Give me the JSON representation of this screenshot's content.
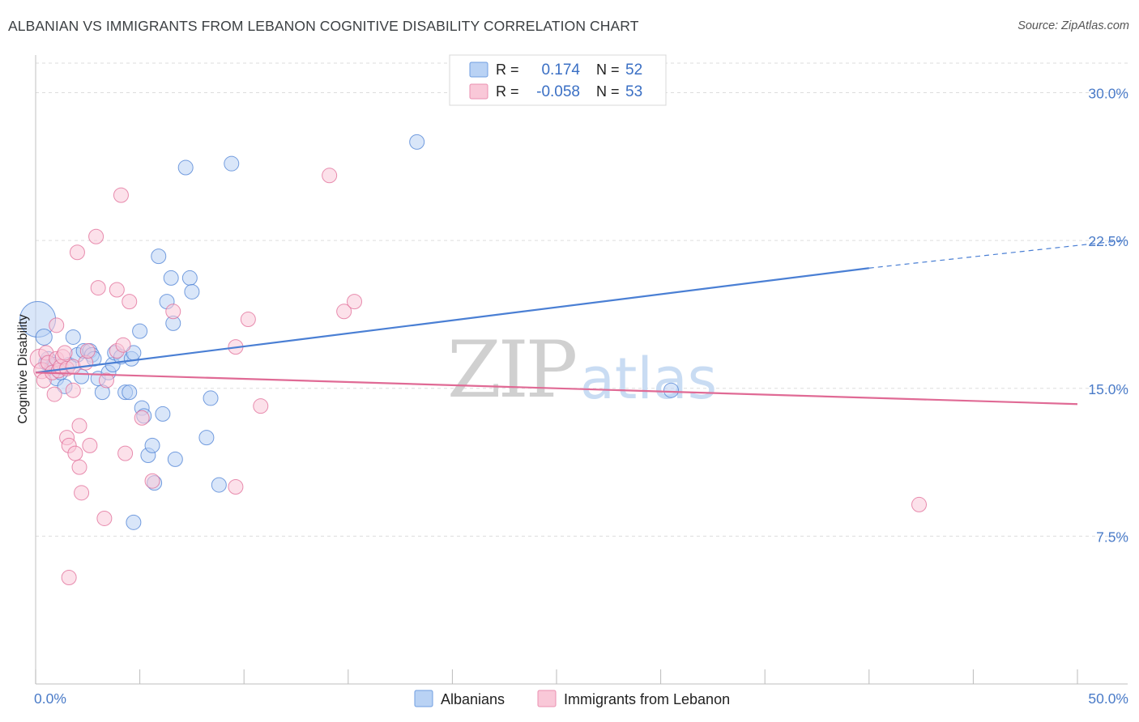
{
  "title": "ALBANIAN VS IMMIGRANTS FROM LEBANON COGNITIVE DISABILITY CORRELATION CHART",
  "source": "Source: ZipAtlas.com",
  "watermark": {
    "zip": "ZIP",
    "atlas": "atlas"
  },
  "legend": {
    "r_label": "R =",
    "n_label": "N =",
    "rows": [
      {
        "r": "0.174",
        "n": "52",
        "fill": "#b9d2f4",
        "stroke": "#6f9ee0"
      },
      {
        "r": "-0.058",
        "n": "53",
        "fill": "#f9c8d8",
        "stroke": "#ea8fb0"
      }
    ]
  },
  "chart_data": {
    "type": "scatter",
    "title": "ALBANIAN VS IMMIGRANTS FROM LEBANON COGNITIVE DISABILITY CORRELATION CHART",
    "xlabel": "",
    "ylabel": "Cognitive Disability",
    "xlim": [
      0,
      50
    ],
    "ylim": [
      0,
      31.5
    ],
    "x_tick_labels": [
      "0.0%",
      "50.0%"
    ],
    "y_ticks": [
      {
        "value": 7.5,
        "label": "7.5%"
      },
      {
        "value": 15.0,
        "label": "15.0%"
      },
      {
        "value": 22.5,
        "label": "22.5%"
      },
      {
        "value": 30.0,
        "label": "30.0%"
      }
    ],
    "grid": true,
    "legend_position": "top-center",
    "series": [
      {
        "name": "Albanians",
        "color": "#4a7fd4",
        "fill": "#b9d2f4",
        "trend": {
          "x": [
            0,
            40
          ],
          "y": [
            15.8,
            21.1
          ],
          "dashed_to": [
            50,
            22.5
          ]
        },
        "points": [
          [
            0.1,
            18.5,
            22
          ],
          [
            0.4,
            17.6,
            10
          ],
          [
            0.5,
            16.3,
            9
          ],
          [
            0.6,
            16.5,
            9
          ],
          [
            0.8,
            16.1,
            9
          ],
          [
            0.9,
            16.2,
            9
          ],
          [
            1.0,
            15.5,
            9
          ],
          [
            1.2,
            15.8,
            9
          ],
          [
            1.4,
            15.1,
            9
          ],
          [
            1.6,
            16.2,
            9
          ],
          [
            1.8,
            17.6,
            9
          ],
          [
            2.0,
            16.7,
            9
          ],
          [
            2.2,
            15.6,
            9
          ],
          [
            2.3,
            16.9,
            9
          ],
          [
            2.6,
            16.9,
            9
          ],
          [
            2.7,
            16.7,
            9
          ],
          [
            2.8,
            16.5,
            9
          ],
          [
            3.0,
            15.5,
            9
          ],
          [
            3.2,
            14.8,
            9
          ],
          [
            3.5,
            15.8,
            9
          ],
          [
            3.7,
            16.2,
            9
          ],
          [
            3.8,
            16.8,
            9
          ],
          [
            4.1,
            16.6,
            9
          ],
          [
            4.3,
            14.8,
            9
          ],
          [
            4.5,
            14.8,
            9
          ],
          [
            4.6,
            16.5,
            9
          ],
          [
            4.7,
            16.8,
            9
          ],
          [
            5.0,
            17.9,
            9
          ],
          [
            5.1,
            14.0,
            9
          ],
          [
            5.2,
            13.6,
            9
          ],
          [
            5.4,
            11.6,
            9
          ],
          [
            5.6,
            12.1,
            9
          ],
          [
            4.7,
            8.2,
            9
          ],
          [
            5.7,
            10.2,
            9
          ],
          [
            5.9,
            21.7,
            9
          ],
          [
            6.1,
            13.7,
            9
          ],
          [
            6.3,
            19.4,
            9
          ],
          [
            6.5,
            20.6,
            9
          ],
          [
            6.6,
            18.3,
            9
          ],
          [
            6.7,
            11.4,
            9
          ],
          [
            7.2,
            26.2,
            9
          ],
          [
            7.4,
            20.6,
            9
          ],
          [
            7.5,
            19.9,
            9
          ],
          [
            8.2,
            12.5,
            9
          ],
          [
            8.4,
            14.5,
            9
          ],
          [
            8.8,
            10.1,
            9
          ],
          [
            9.4,
            26.4,
            9
          ],
          [
            18.3,
            27.5,
            9
          ],
          [
            30.5,
            14.9,
            9
          ]
        ]
      },
      {
        "name": "Immigrants from Lebanon",
        "color": "#e06a95",
        "fill": "#f9c8d8",
        "trend": {
          "x": [
            0,
            50
          ],
          "y": [
            15.8,
            14.2
          ]
        },
        "points": [
          [
            0.2,
            16.5,
            12
          ],
          [
            0.3,
            15.9,
            10
          ],
          [
            0.4,
            15.4,
            9
          ],
          [
            0.5,
            16.8,
            9
          ],
          [
            0.6,
            16.3,
            9
          ],
          [
            0.8,
            15.8,
            9
          ],
          [
            0.9,
            14.7,
            9
          ],
          [
            1.0,
            16.5,
            9
          ],
          [
            1.0,
            18.2,
            9
          ],
          [
            1.1,
            15.9,
            9
          ],
          [
            1.2,
            16.1,
            9
          ],
          [
            1.3,
            16.6,
            9
          ],
          [
            1.4,
            16.8,
            9
          ],
          [
            1.5,
            16.0,
            9
          ],
          [
            1.5,
            12.5,
            9
          ],
          [
            1.6,
            12.1,
            9
          ],
          [
            1.8,
            16.1,
            9
          ],
          [
            1.8,
            14.9,
            9
          ],
          [
            1.9,
            11.7,
            9
          ],
          [
            2.0,
            21.9,
            9
          ],
          [
            2.1,
            11.0,
            9
          ],
          [
            2.1,
            13.1,
            9
          ],
          [
            2.2,
            9.7,
            9
          ],
          [
            2.4,
            16.3,
            9
          ],
          [
            2.5,
            16.9,
            9
          ],
          [
            2.6,
            12.1,
            9
          ],
          [
            1.6,
            5.4,
            9
          ],
          [
            2.9,
            22.7,
            9
          ],
          [
            3.0,
            20.1,
            9
          ],
          [
            3.3,
            8.4,
            9
          ],
          [
            3.4,
            15.4,
            9
          ],
          [
            3.9,
            16.9,
            9
          ],
          [
            3.9,
            20.0,
            9
          ],
          [
            4.1,
            24.8,
            9
          ],
          [
            4.3,
            11.7,
            9
          ],
          [
            4.5,
            19.4,
            9
          ],
          [
            4.2,
            17.2,
            9
          ],
          [
            5.1,
            13.5,
            9
          ],
          [
            5.6,
            10.3,
            9
          ],
          [
            6.6,
            18.9,
            9
          ],
          [
            9.6,
            10.0,
            9
          ],
          [
            10.2,
            18.5,
            9
          ],
          [
            9.6,
            17.1,
            9
          ],
          [
            10.8,
            14.1,
            9
          ],
          [
            14.1,
            25.8,
            9
          ],
          [
            14.8,
            18.9,
            9
          ],
          [
            15.3,
            19.4,
            9
          ],
          [
            42.4,
            9.1,
            9
          ]
        ]
      }
    ]
  }
}
